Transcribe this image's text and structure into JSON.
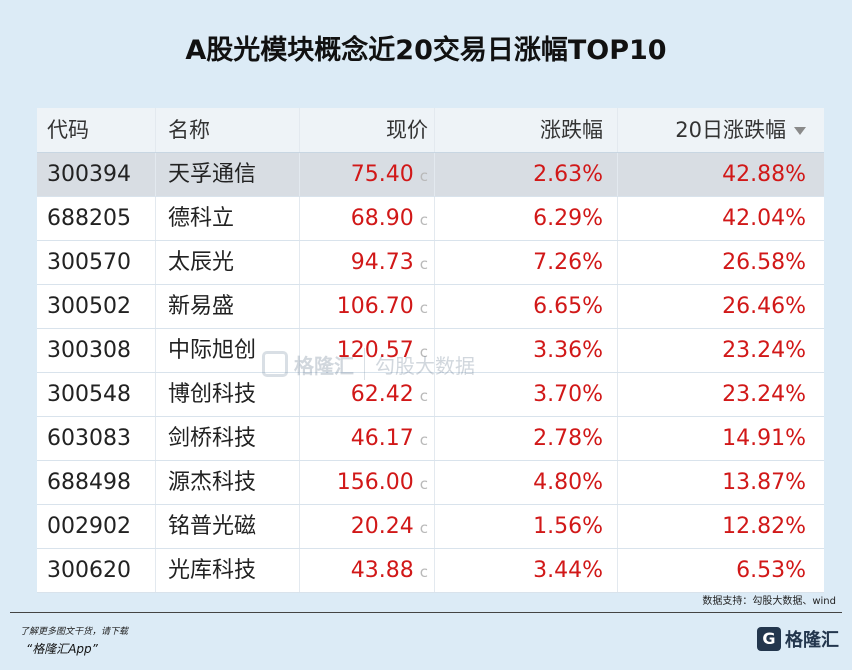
{
  "title": "A股光模块概念近20交易日涨幅TOP10",
  "table": {
    "headers": {
      "code": "代码",
      "name": "名称",
      "price": "现价",
      "change": "涨跌幅",
      "change20": "20日涨跌幅"
    },
    "price_flag": "c",
    "rows": [
      {
        "code": "300394",
        "name": "天孚通信",
        "price": "75.40",
        "change": "2.63%",
        "change20": "42.88%"
      },
      {
        "code": "688205",
        "name": "德科立",
        "price": "68.90",
        "change": "6.29%",
        "change20": "42.04%"
      },
      {
        "code": "300570",
        "name": "太辰光",
        "price": "94.73",
        "change": "7.26%",
        "change20": "26.58%"
      },
      {
        "code": "300502",
        "name": "新易盛",
        "price": "106.70",
        "change": "6.65%",
        "change20": "26.46%"
      },
      {
        "code": "300308",
        "name": "中际旭创",
        "price": "120.57",
        "change": "3.36%",
        "change20": "23.24%"
      },
      {
        "code": "300548",
        "name": "博创科技",
        "price": "62.42",
        "change": "3.70%",
        "change20": "23.24%"
      },
      {
        "code": "603083",
        "name": "剑桥科技",
        "price": "46.17",
        "change": "2.78%",
        "change20": "14.91%"
      },
      {
        "code": "688498",
        "name": "源杰科技",
        "price": "156.00",
        "change": "4.80%",
        "change20": "13.87%"
      },
      {
        "code": "002902",
        "name": "铭普光磁",
        "price": "20.24",
        "change": "1.56%",
        "change20": "12.82%"
      },
      {
        "code": "300620",
        "name": "光库科技",
        "price": "43.88",
        "change": "3.44%",
        "change20": "6.53%"
      }
    ]
  },
  "watermark": {
    "brand": "格隆汇",
    "brand2": "勾股大数据"
  },
  "source": "数据支持：勾股大数据、wind",
  "footer": {
    "line1": "了解更多图文干货，请下载",
    "line2": "“格隆汇App”"
  },
  "logo": {
    "mark": "G",
    "text": "格隆汇"
  },
  "colors": {
    "up": "#d11818",
    "background": "#dcebf6",
    "selected_row": "#d8dde3"
  }
}
